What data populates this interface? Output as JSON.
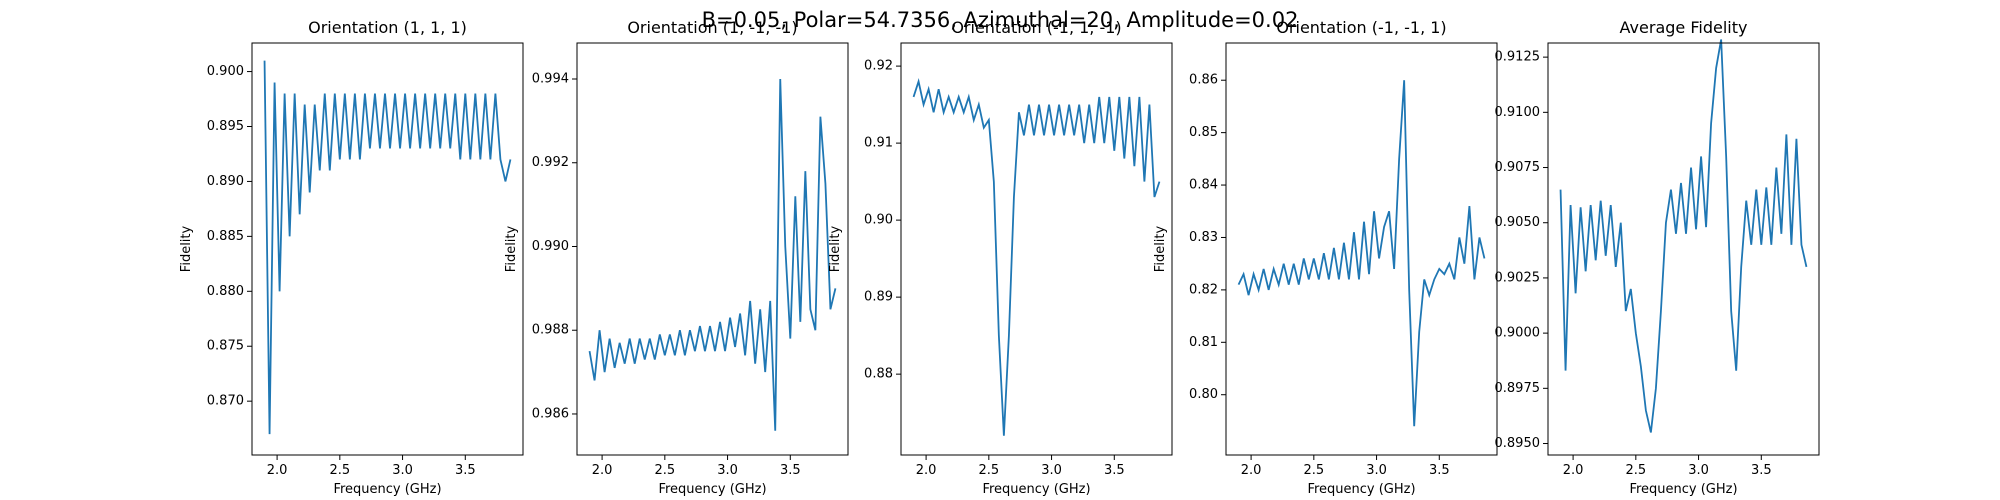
{
  "title": "B=0.05, Polar=54.7356, Azimuthal=20, Amplitude=0.02",
  "chart_data": [
    {
      "type": "line",
      "title": "Orientation (1, 1, 1)",
      "xlabel": "Frequency (GHz)",
      "ylabel": "Fidelity",
      "xlim": [
        1.8,
        3.96
      ],
      "ylim": [
        0.8651,
        0.9026
      ],
      "xticks": [
        {
          "value": 2.0,
          "label": "2.0"
        },
        2.5,
        {
          "value": 3.0,
          "label": "3.0"
        },
        3.5
      ],
      "yticks": [
        {
          "value": 0.87,
          "label": "0.870"
        },
        0.875,
        {
          "value": 0.88,
          "label": "0.880"
        },
        0.885,
        {
          "value": 0.89,
          "label": "0.890"
        },
        0.895,
        {
          "value": 0.9,
          "label": "0.900"
        }
      ],
      "x": [
        1.9,
        1.94,
        1.98,
        2.02,
        2.06,
        2.1,
        2.14,
        2.18,
        2.22,
        2.26,
        2.3,
        2.34,
        2.38,
        2.42,
        2.46,
        2.5,
        2.54,
        2.58,
        2.62,
        2.66,
        2.7,
        2.74,
        2.78,
        2.82,
        2.86,
        2.9,
        2.94,
        2.98,
        3.02,
        3.06,
        3.1,
        3.14,
        3.18,
        3.22,
        3.26,
        3.3,
        3.34,
        3.38,
        3.42,
        3.46,
        3.5,
        3.54,
        3.58,
        3.62,
        3.66,
        3.7,
        3.74,
        3.78,
        3.82,
        3.86
      ],
      "series": [
        {
          "color": "#1f77b4",
          "values": [
            0.901,
            0.867,
            0.899,
            0.88,
            0.898,
            0.885,
            0.898,
            0.887,
            0.897,
            0.889,
            0.897,
            0.891,
            0.898,
            0.891,
            0.898,
            0.892,
            0.898,
            0.892,
            0.898,
            0.892,
            0.898,
            0.893,
            0.898,
            0.893,
            0.898,
            0.893,
            0.898,
            0.893,
            0.898,
            0.893,
            0.898,
            0.893,
            0.898,
            0.893,
            0.898,
            0.893,
            0.898,
            0.893,
            0.898,
            0.892,
            0.898,
            0.892,
            0.898,
            0.892,
            0.898,
            0.892,
            0.898,
            0.892,
            0.89,
            0.892
          ]
        }
      ]
    },
    {
      "type": "line",
      "title": "Orientation (1, -1, -1)",
      "xlabel": "Frequency (GHz)",
      "ylabel": "Fidelity",
      "xlim": [
        1.8,
        3.96
      ],
      "ylim": [
        0.98502,
        0.99486
      ],
      "xticks": [
        {
          "value": 2.0,
          "label": "2.0"
        },
        2.5,
        {
          "value": 3.0,
          "label": "3.0"
        },
        3.5
      ],
      "yticks": [
        0.986,
        0.988,
        {
          "value": 0.99,
          "label": "0.990"
        },
        0.992,
        0.994
      ],
      "x": [
        1.9,
        1.94,
        1.98,
        2.02,
        2.06,
        2.1,
        2.14,
        2.18,
        2.22,
        2.26,
        2.3,
        2.34,
        2.38,
        2.42,
        2.46,
        2.5,
        2.54,
        2.58,
        2.62,
        2.66,
        2.7,
        2.74,
        2.78,
        2.82,
        2.86,
        2.9,
        2.94,
        2.98,
        3.02,
        3.06,
        3.1,
        3.14,
        3.18,
        3.22,
        3.26,
        3.3,
        3.34,
        3.38,
        3.42,
        3.46,
        3.5,
        3.54,
        3.58,
        3.62,
        3.66,
        3.7,
        3.74,
        3.78,
        3.82,
        3.86
      ],
      "series": [
        {
          "color": "#1f77b4",
          "values": [
            0.9875,
            0.9868,
            0.988,
            0.987,
            0.9878,
            0.9871,
            0.9877,
            0.9872,
            0.9878,
            0.9872,
            0.9878,
            0.9873,
            0.9878,
            0.9873,
            0.9879,
            0.9874,
            0.9879,
            0.9874,
            0.988,
            0.9874,
            0.988,
            0.9875,
            0.9881,
            0.9875,
            0.9881,
            0.9875,
            0.9882,
            0.9875,
            0.9883,
            0.9876,
            0.9884,
            0.9874,
            0.9887,
            0.9872,
            0.9885,
            0.987,
            0.9887,
            0.9856,
            0.994,
            0.99,
            0.9878,
            0.9912,
            0.9882,
            0.9918,
            0.9885,
            0.988,
            0.9931,
            0.9915,
            0.9885,
            0.989
          ]
        }
      ]
    },
    {
      "type": "line",
      "title": "Orientation (-1, 1, -1)",
      "xlabel": "Frequency (GHz)",
      "ylabel": "Fidelity",
      "xlim": [
        1.8,
        3.96
      ],
      "ylim": [
        0.8695,
        0.923
      ],
      "xticks": [
        {
          "value": 2.0,
          "label": "2.0"
        },
        2.5,
        {
          "value": 3.0,
          "label": "3.0"
        },
        3.5
      ],
      "yticks": [
        0.88,
        0.89,
        {
          "value": 0.9,
          "label": "0.90"
        },
        0.91,
        0.92
      ],
      "x": [
        1.9,
        1.94,
        1.98,
        2.02,
        2.06,
        2.1,
        2.14,
        2.18,
        2.22,
        2.26,
        2.3,
        2.34,
        2.38,
        2.42,
        2.46,
        2.5,
        2.54,
        2.58,
        2.62,
        2.66,
        2.7,
        2.74,
        2.78,
        2.82,
        2.86,
        2.9,
        2.94,
        2.98,
        3.02,
        3.06,
        3.1,
        3.14,
        3.18,
        3.22,
        3.26,
        3.3,
        3.34,
        3.38,
        3.42,
        3.46,
        3.5,
        3.54,
        3.58,
        3.62,
        3.66,
        3.7,
        3.74,
        3.78,
        3.82,
        3.86
      ],
      "series": [
        {
          "color": "#1f77b4",
          "values": [
            0.916,
            0.918,
            0.915,
            0.917,
            0.914,
            0.917,
            0.914,
            0.916,
            0.914,
            0.916,
            0.914,
            0.916,
            0.913,
            0.915,
            0.912,
            0.913,
            0.905,
            0.885,
            0.872,
            0.885,
            0.903,
            0.914,
            0.911,
            0.915,
            0.911,
            0.915,
            0.911,
            0.915,
            0.911,
            0.915,
            0.911,
            0.915,
            0.911,
            0.915,
            0.91,
            0.915,
            0.91,
            0.916,
            0.91,
            0.916,
            0.909,
            0.916,
            0.908,
            0.916,
            0.907,
            0.916,
            0.905,
            0.915,
            0.903,
            0.905
          ]
        }
      ]
    },
    {
      "type": "line",
      "title": "Orientation (-1, -1, 1)",
      "xlabel": "Frequency (GHz)",
      "ylabel": "Fidelity",
      "xlim": [
        1.8,
        3.96
      ],
      "ylim": [
        0.7885,
        0.8671
      ],
      "xticks": [
        {
          "value": 2.0,
          "label": "2.0"
        },
        2.5,
        {
          "value": 3.0,
          "label": "3.0"
        },
        3.5
      ],
      "yticks": [
        {
          "value": 0.8,
          "label": "0.80"
        },
        0.81,
        0.82,
        0.83,
        0.84,
        0.85,
        0.86
      ],
      "x": [
        1.9,
        1.94,
        1.98,
        2.02,
        2.06,
        2.1,
        2.14,
        2.18,
        2.22,
        2.26,
        2.3,
        2.34,
        2.38,
        2.42,
        2.46,
        2.5,
        2.54,
        2.58,
        2.62,
        2.66,
        2.7,
        2.74,
        2.78,
        2.82,
        2.86,
        2.9,
        2.94,
        2.98,
        3.02,
        3.06,
        3.1,
        3.14,
        3.18,
        3.22,
        3.26,
        3.3,
        3.34,
        3.38,
        3.42,
        3.46,
        3.5,
        3.54,
        3.58,
        3.62,
        3.66,
        3.7,
        3.74,
        3.78,
        3.82,
        3.86
      ],
      "series": [
        {
          "color": "#1f77b4",
          "values": [
            0.821,
            0.823,
            0.819,
            0.823,
            0.82,
            0.824,
            0.82,
            0.824,
            0.821,
            0.825,
            0.821,
            0.825,
            0.821,
            0.826,
            0.822,
            0.826,
            0.822,
            0.827,
            0.822,
            0.828,
            0.822,
            0.829,
            0.822,
            0.831,
            0.822,
            0.833,
            0.823,
            0.835,
            0.826,
            0.832,
            0.835,
            0.824,
            0.845,
            0.86,
            0.82,
            0.794,
            0.812,
            0.822,
            0.819,
            0.822,
            0.824,
            0.823,
            0.825,
            0.822,
            0.83,
            0.825,
            0.836,
            0.822,
            0.83,
            0.826
          ]
        }
      ]
    },
    {
      "type": "line",
      "title": "Average Fidelity",
      "xlabel": "Frequency (GHz)",
      "xlim": [
        1.8,
        3.96
      ],
      "ylim": [
        0.89448,
        0.91314
      ],
      "xticks": [
        {
          "value": 2.0,
          "label": "2.0"
        },
        2.5,
        {
          "value": 3.0,
          "label": "3.0"
        },
        3.5
      ],
      "yticks": [
        {
          "value": 0.895,
          "label": "0.8950"
        },
        0.8975,
        {
          "value": 0.9,
          "label": "0.9000"
        },
        0.9025,
        {
          "value": 0.905,
          "label": "0.9050"
        },
        0.9075,
        {
          "value": 0.91,
          "label": "0.9100"
        },
        0.9125
      ],
      "x": [
        1.9,
        1.94,
        1.98,
        2.02,
        2.06,
        2.1,
        2.14,
        2.18,
        2.22,
        2.26,
        2.3,
        2.34,
        2.38,
        2.42,
        2.46,
        2.5,
        2.54,
        2.58,
        2.62,
        2.66,
        2.7,
        2.74,
        2.78,
        2.82,
        2.86,
        2.9,
        2.94,
        2.98,
        3.02,
        3.06,
        3.1,
        3.14,
        3.18,
        3.22,
        3.26,
        3.3,
        3.34,
        3.38,
        3.42,
        3.46,
        3.5,
        3.54,
        3.58,
        3.62,
        3.66,
        3.7,
        3.74,
        3.78,
        3.82,
        3.86
      ],
      "series": [
        {
          "color": "#1f77b4",
          "values": [
            0.9065,
            0.8983,
            0.9058,
            0.9018,
            0.9057,
            0.9028,
            0.9058,
            0.9033,
            0.906,
            0.9035,
            0.9058,
            0.903,
            0.905,
            0.901,
            0.902,
            0.9,
            0.8985,
            0.8965,
            0.8955,
            0.8975,
            0.901,
            0.905,
            0.9065,
            0.9045,
            0.9068,
            0.9045,
            0.9075,
            0.9047,
            0.908,
            0.9048,
            0.9095,
            0.912,
            0.9133,
            0.908,
            0.901,
            0.8983,
            0.903,
            0.906,
            0.904,
            0.9065,
            0.904,
            0.9066,
            0.904,
            0.9075,
            0.9045,
            0.909,
            0.904,
            0.9088,
            0.904,
            0.903
          ]
        }
      ]
    }
  ]
}
